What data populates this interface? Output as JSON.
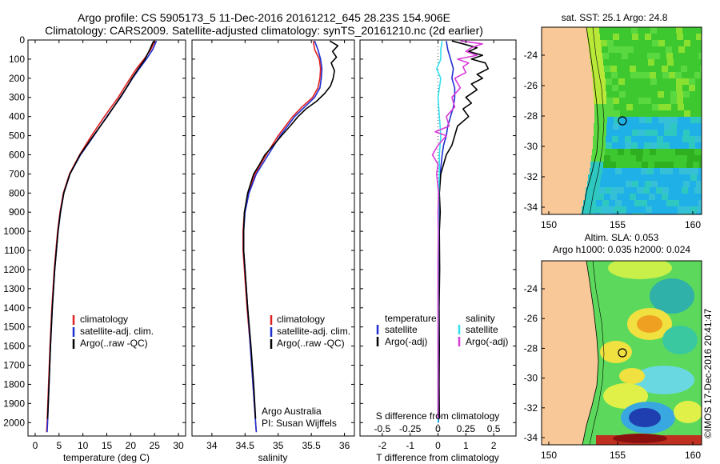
{
  "title_line1": "Argo profile: CS 5905173_5 11-Dec-2016 20161212_645 28.23S 154.906E",
  "title_line2": "Climatology: CARS2009. Satellite-adjusted climatology: synTS_20161210.nc (2d earlier)",
  "watermark": "©IMOS 17-Dec-2016 20:41:47",
  "colors": {
    "climatology": "#e02020",
    "satellite": "#1f2fd0",
    "argo": "#000000",
    "salinity_sat": "#33e0ee",
    "salinity_argo": "#d83ad8",
    "land": "#f8c898"
  },
  "chart_data": [
    {
      "type": "line",
      "panel": "temperature",
      "xlabel": "temperature (deg C)",
      "xlim": [
        -1.5,
        31.5
      ],
      "xticks": [
        0,
        5,
        10,
        15,
        20,
        25,
        30
      ],
      "ylim": [
        0,
        2070
      ],
      "yticks": [
        0,
        100,
        200,
        300,
        400,
        500,
        600,
        700,
        800,
        900,
        1000,
        1100,
        1200,
        1300,
        1400,
        1500,
        1600,
        1700,
        1800,
        1900,
        2000
      ],
      "legend": [
        "climatology",
        "satellite-adj. clim.",
        "Argo(..raw -QC)"
      ],
      "series": [
        {
          "name": "climatology",
          "depth": [
            5,
            50,
            100,
            150,
            200,
            300,
            400,
            500,
            600,
            700,
            800,
            900,
            1000,
            1200,
            1400,
            1600,
            1800,
            2000,
            2050
          ],
          "values": [
            25.1,
            24.2,
            22.8,
            21.2,
            19.9,
            17.4,
            14.5,
            11.8,
            9.3,
            7.2,
            5.9,
            5.2,
            4.7,
            4.0,
            3.5,
            3.1,
            2.8,
            2.5,
            2.4
          ]
        },
        {
          "name": "satellite-adj. clim.",
          "depth": [
            5,
            50,
            100,
            150,
            200,
            300,
            400,
            500,
            600,
            700,
            800,
            900,
            1000,
            1200,
            1400,
            1600,
            1800,
            2000,
            2050
          ],
          "values": [
            25.4,
            24.6,
            23.3,
            21.8,
            20.4,
            17.9,
            15.0,
            12.3,
            9.5,
            7.3,
            6.0,
            5.3,
            4.8,
            4.1,
            3.6,
            3.2,
            2.9,
            2.6,
            2.5
          ]
        },
        {
          "name": "Argo(..raw -QC)",
          "depth": [
            5,
            50,
            100,
            150,
            200,
            250,
            300,
            400,
            500,
            600,
            700,
            800,
            900,
            1000,
            1200,
            1400,
            1600,
            1800,
            1980
          ],
          "values": [
            24.8,
            24.0,
            23.0,
            21.6,
            20.3,
            19.1,
            17.8,
            15.1,
            12.2,
            9.4,
            7.3,
            6.0,
            5.3,
            4.8,
            4.1,
            3.6,
            3.2,
            2.9,
            2.6
          ]
        }
      ]
    },
    {
      "type": "line",
      "panel": "salinity",
      "xlabel": "salinity",
      "xlim": [
        33.7,
        36.15
      ],
      "xticks": [
        34,
        34.5,
        35,
        35.5,
        36
      ],
      "ylim": [
        0,
        2070
      ],
      "legend": [
        "climatology",
        "satellite-adj. clim.",
        "Argo(..raw -QC)"
      ],
      "annotation": [
        "Argo Australia",
        "PI: Susan Wijffels"
      ],
      "series": [
        {
          "name": "climatology",
          "depth": [
            5,
            50,
            100,
            150,
            200,
            250,
            300,
            350,
            400,
            500,
            600,
            700,
            800,
            900,
            1000,
            1100,
            1200,
            1400,
            1600,
            1800,
            2000,
            2050
          ],
          "values": [
            35.53,
            35.55,
            35.62,
            35.64,
            35.63,
            35.6,
            35.52,
            35.36,
            35.22,
            35.0,
            34.82,
            34.65,
            34.55,
            34.49,
            34.47,
            34.47,
            34.49,
            34.53,
            34.58,
            34.62,
            34.66,
            34.67
          ]
        },
        {
          "name": "satellite-adj. clim.",
          "depth": [
            5,
            50,
            100,
            150,
            200,
            250,
            300,
            350,
            400,
            500,
            600,
            700,
            800,
            900,
            1000,
            1100,
            1200,
            1400,
            1600,
            1800,
            2000,
            2050
          ],
          "values": [
            35.55,
            35.6,
            35.64,
            35.66,
            35.65,
            35.63,
            35.55,
            35.4,
            35.25,
            35.03,
            34.85,
            34.67,
            34.56,
            34.5,
            34.48,
            34.48,
            34.5,
            34.54,
            34.58,
            34.62,
            34.66,
            34.67
          ]
        },
        {
          "name": "Argo(..raw -QC)",
          "depth": [
            5,
            30,
            60,
            90,
            120,
            160,
            200,
            240,
            280,
            320,
            360,
            400,
            450,
            500,
            550,
            600,
            650,
            700,
            800,
            900,
            1000,
            1100,
            1200,
            1400,
            1600,
            1800,
            1980
          ],
          "values": [
            35.78,
            35.9,
            35.82,
            35.88,
            35.8,
            35.85,
            35.83,
            35.79,
            35.7,
            35.58,
            35.42,
            35.3,
            35.18,
            35.05,
            34.93,
            34.8,
            34.72,
            34.63,
            34.54,
            34.49,
            34.48,
            34.48,
            34.5,
            34.54,
            34.59,
            34.63,
            34.66
          ]
        }
      ]
    },
    {
      "type": "line",
      "panel": "difference",
      "xlabel": "T difference from climatology",
      "xlabel_top": "S difference from climatology",
      "xlim": [
        -2.8,
        2.8
      ],
      "xticks": [
        -2,
        -1,
        0,
        1,
        2
      ],
      "top_ticks": [
        "-0.5",
        "-0.25",
        "0",
        "0.25",
        "0.5"
      ],
      "top_tick_values": [
        -2,
        -1,
        0,
        1,
        2
      ],
      "ylim": [
        0,
        2070
      ],
      "legend_left_title": "temperature",
      "legend_right_title": "salinity",
      "legend_left": [
        "satellite",
        "Argo(-adj)"
      ],
      "legend_right": [
        "satellite",
        "Argo(-adj)"
      ],
      "series": [
        {
          "name": "T satellite",
          "depth": [
            5,
            50,
            100,
            150,
            200,
            250,
            300,
            350,
            400,
            450,
            500,
            550,
            600,
            700,
            800,
            1000,
            1200,
            1500,
            1800,
            2000
          ],
          "values": [
            0.3,
            0.35,
            0.45,
            0.55,
            0.5,
            0.6,
            0.6,
            0.55,
            0.45,
            0.35,
            0.3,
            0.2,
            0.15,
            0.08,
            0.05,
            0.04,
            0.03,
            0.02,
            0.02,
            0.02
          ]
        },
        {
          "name": "T Argo(-adj)",
          "depth": [
            5,
            20,
            40,
            60,
            80,
            100,
            120,
            150,
            180,
            200,
            230,
            260,
            300,
            330,
            360,
            400,
            450,
            500,
            550,
            600,
            650,
            700,
            800,
            900,
            1000,
            1200,
            1400,
            1600,
            1800,
            1980
          ],
          "values": [
            0.5,
            0.9,
            1.4,
            1.1,
            1.6,
            1.2,
            1.7,
            1.8,
            1.4,
            1.6,
            1.2,
            1.4,
            1.0,
            1.2,
            0.9,
            1.1,
            0.7,
            0.6,
            0.5,
            0.3,
            0.2,
            0.1,
            0.05,
            0.08,
            0.05,
            0.06,
            0.04,
            0.05,
            0.04,
            0.05
          ]
        },
        {
          "name": "S satellite",
          "depth": [
            5,
            50,
            100,
            150,
            200,
            300,
            400,
            500,
            600,
            700,
            800,
            1000,
            1200,
            1500,
            1800,
            2000
          ],
          "values": [
            0.15,
            0.1,
            0.1,
            -0.05,
            0.1,
            0.0,
            0.05,
            0.1,
            0.05,
            0.05,
            0.03,
            0.02,
            0.01,
            0.01,
            0.0,
            0.0
          ]
        },
        {
          "name": "S Argo(-adj)",
          "depth": [
            5,
            20,
            40,
            60,
            80,
            100,
            120,
            140,
            170,
            200,
            250,
            300,
            350,
            400,
            450,
            480,
            500,
            550,
            600,
            650,
            700,
            800,
            900,
            1000,
            1200,
            1500,
            1800,
            1980
          ],
          "values": [
            0.8,
            1.6,
            1.2,
            1.0,
            1.4,
            0.7,
            1.1,
            0.9,
            1.0,
            0.6,
            0.8,
            0.5,
            0.6,
            0.3,
            0.4,
            -0.1,
            0.3,
            0.0,
            -0.2,
            0.0,
            -0.05,
            0.02,
            0.0,
            0.01,
            0.0,
            0.0,
            0.0,
            0.0
          ]
        }
      ]
    },
    {
      "type": "heatmap",
      "panel": "sst_map",
      "title": "sat. SST: 25.1  Argo: 24.8",
      "xticks": [
        "150",
        "155",
        "160"
      ],
      "yticks": [
        "-24",
        "-26",
        "-28",
        "-30",
        "-32",
        "-34"
      ],
      "marker": {
        "lon": 154.906,
        "lat": -28.23
      }
    },
    {
      "type": "heatmap",
      "panel": "sla_map",
      "title_line1": "Altim. SLA: 0.053",
      "title_line2": "Argo h1000: 0.035  h2000: 0.024",
      "xticks": [
        "150",
        "155",
        "160"
      ],
      "yticks": [
        "-24",
        "-26",
        "-28",
        "-30",
        "-32",
        "-34"
      ],
      "marker": {
        "lon": 154.906,
        "lat": -28.23
      }
    }
  ]
}
